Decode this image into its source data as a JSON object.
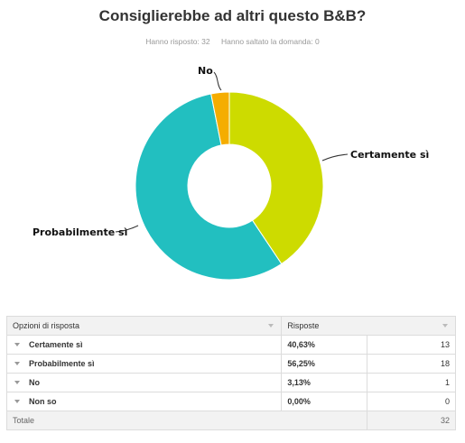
{
  "chart_data": {
    "type": "pie",
    "donut": true,
    "title": "Consiglierebbe ad altri questo B&B?",
    "subtitle": {
      "answered": "Hanno risposto: 32",
      "skipped": "Hanno saltato la domanda: 0"
    },
    "slices": [
      {
        "label": "Certamente sì",
        "value": 40.63,
        "color": "#cddb00"
      },
      {
        "label": "Probabilmente sì",
        "value": 56.25,
        "color": "#22bfc0"
      },
      {
        "label": "No",
        "value": 3.13,
        "color": "#f5ad00"
      }
    ]
  },
  "table": {
    "headers": {
      "options": "Opzioni di risposta",
      "responses": "Risposte"
    },
    "rows": [
      {
        "label": "Certamente sì",
        "percent": "40,63%",
        "count": "13"
      },
      {
        "label": "Probabilmente sì",
        "percent": "56,25%",
        "count": "18"
      },
      {
        "label": "No",
        "percent": "3,13%",
        "count": "1"
      },
      {
        "label": "Non so",
        "percent": "0,00%",
        "count": "0"
      }
    ],
    "total": {
      "label": "Totale",
      "count": "32"
    }
  }
}
